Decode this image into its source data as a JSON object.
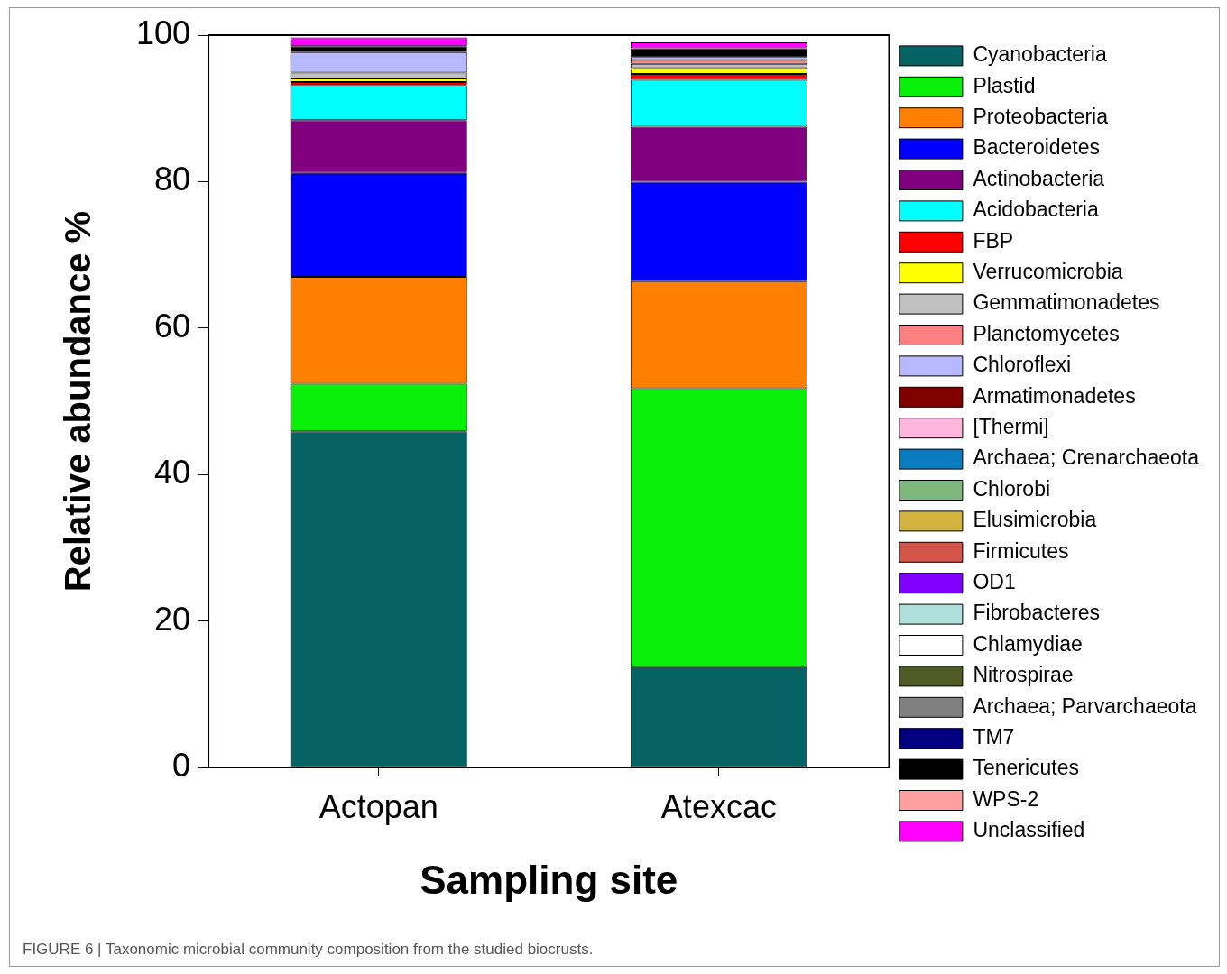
{
  "chart_data": {
    "type": "bar",
    "stacked": true,
    "xlabel": "Sampling site",
    "ylabel": "Relative abundance %",
    "categories": [
      "Actopan",
      "Atexcac"
    ],
    "ylim": [
      0,
      100
    ],
    "yticks": [
      0,
      20,
      40,
      60,
      80,
      100
    ],
    "grid": false,
    "legend": "right",
    "annotations": [
      "FIGURE 6 | Taxonomic microbial community composition from the studied biocrusts."
    ],
    "series": [
      {
        "name": "Cyanobacteria",
        "color": "#056363",
        "values": [
          45.9,
          13.7
        ]
      },
      {
        "name": "Plastid",
        "color": "#0bf00b",
        "values": [
          6.5,
          38.1
        ]
      },
      {
        "name": "Proteobacteria",
        "color": "#ff8000",
        "values": [
          14.6,
          14.6
        ]
      },
      {
        "name": "Bacteroidetes",
        "color": "#0000ff",
        "values": [
          14.2,
          13.6
        ]
      },
      {
        "name": "Actinobacteria",
        "color": "#800080",
        "values": [
          7.2,
          7.5
        ]
      },
      {
        "name": "Acidobacteria",
        "color": "#00ffff",
        "values": [
          4.8,
          6.4
        ]
      },
      {
        "name": "FBP",
        "color": "#ff0000",
        "values": [
          0.4,
          0.8
        ]
      },
      {
        "name": "Verrucomicrobia",
        "color": "#ffff00",
        "values": [
          0.5,
          0.8
        ]
      },
      {
        "name": "Gemmatimonadetes",
        "color": "#c0c0c0",
        "values": [
          0.8,
          0.6
        ]
      },
      {
        "name": "Planctomycetes",
        "color": "#ff8080",
        "values": [
          0,
          0.5
        ]
      },
      {
        "name": "Chloroflexi",
        "color": "#b8b8ff",
        "values": [
          2.8,
          0.4
        ]
      },
      {
        "name": "Armatimonadetes",
        "color": "#800000",
        "values": [
          0,
          0
        ]
      },
      {
        "name": "[Thermi]",
        "color": "#ffb6dc",
        "values": [
          0,
          0
        ]
      },
      {
        "name": "Archaea; Crenarchaeota",
        "color": "#0a7bbf",
        "values": [
          0,
          0
        ]
      },
      {
        "name": "Chlorobi",
        "color": "#7fb87f",
        "values": [
          0,
          0
        ]
      },
      {
        "name": "Elusimicrobia",
        "color": "#d4b440",
        "values": [
          0,
          0
        ]
      },
      {
        "name": "Firmicutes",
        "color": "#d4554a",
        "values": [
          0,
          0
        ]
      },
      {
        "name": "OD1",
        "color": "#8000ff",
        "values": [
          0,
          0
        ]
      },
      {
        "name": "Fibrobacteres",
        "color": "#b0e0dc",
        "values": [
          0,
          0
        ]
      },
      {
        "name": "Chlamydiae",
        "color": "#ffffff",
        "values": [
          0,
          0
        ]
      },
      {
        "name": "Nitrospirae",
        "color": "#4f5a25",
        "values": [
          0,
          0
        ]
      },
      {
        "name": "Archaea; Parvarchaeota",
        "color": "#808080",
        "values": [
          0,
          0
        ]
      },
      {
        "name": "TM7",
        "color": "#000080",
        "values": [
          0,
          0
        ]
      },
      {
        "name": "Tenericutes",
        "color": "#000000",
        "values": [
          0.8,
          1.2
        ]
      },
      {
        "name": "WPS-2",
        "color": "#ffa0a0",
        "values": [
          0,
          0
        ]
      },
      {
        "name": "Unclassified",
        "color": "#ff00ff",
        "values": [
          1.2,
          0.8
        ]
      }
    ]
  }
}
